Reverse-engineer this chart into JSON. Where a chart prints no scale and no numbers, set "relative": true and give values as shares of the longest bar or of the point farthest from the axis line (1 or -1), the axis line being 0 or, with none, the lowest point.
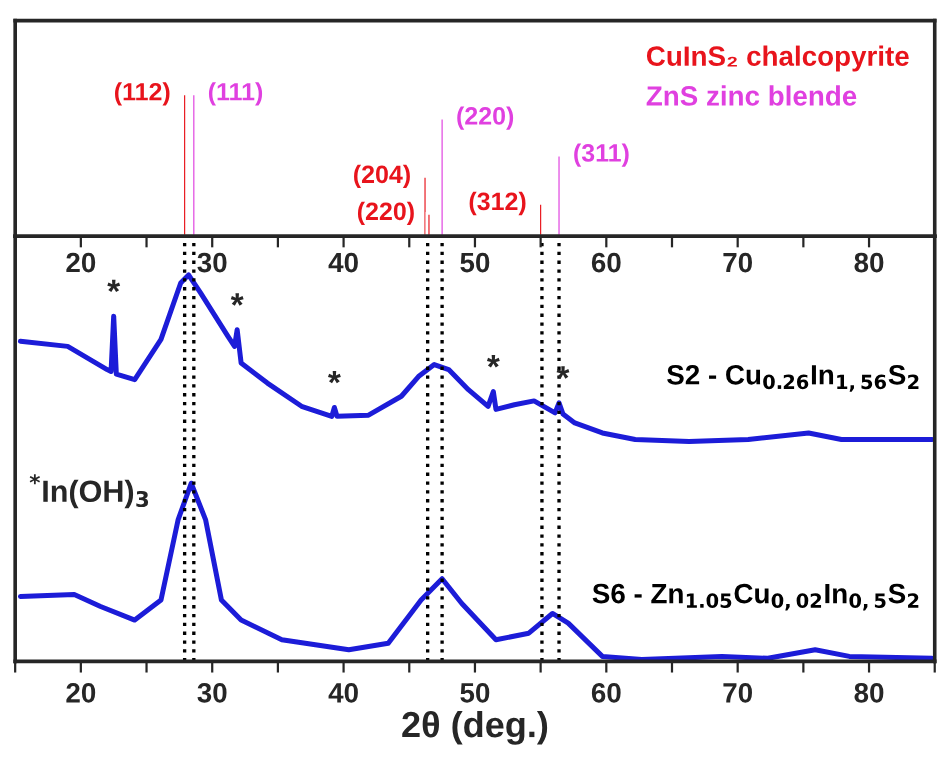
{
  "chart_data": [
    {
      "type": "bar",
      "relative": true,
      "legend": "top right",
      "tick_labels": false,
      "xlim": [
        15,
        85
      ],
      "xticks": [
        {
          "value": 15,
          "label": null
        },
        {
          "value": 20,
          "label": null
        },
        {
          "value": 25,
          "label": null
        },
        {
          "value": 30,
          "label": null
        },
        {
          "value": 35,
          "label": null
        },
        {
          "value": 40,
          "label": null
        },
        {
          "value": 45,
          "label": null
        },
        {
          "value": 50,
          "label": null
        },
        {
          "value": 55,
          "label": null
        },
        {
          "value": 60,
          "label": null
        },
        {
          "value": 65,
          "label": null
        },
        {
          "value": 70,
          "label": null
        },
        {
          "value": 75,
          "label": null
        },
        {
          "value": 80,
          "label": null
        },
        {
          "value": 85,
          "label": null
        }
      ],
      "series": [
        {
          "name": "CuInS₂ chalcopyrite",
          "color": "#e8141c",
          "x": [
            27.9,
            46.2,
            46.5,
            55.0
          ],
          "values": [
            1.0,
            0.42,
            0.16,
            0.23
          ]
        },
        {
          "name": "ZnS zinc blende",
          "color": "#e040e0",
          "x": [
            28.6,
            47.5,
            56.4
          ],
          "values": [
            1.0,
            0.83,
            0.57
          ]
        }
      ],
      "annotations": [
        {
          "text": "(112)",
          "x": 27.9,
          "y": 1.0
        },
        {
          "text": "(204)",
          "x": 46.2,
          "y": 0.42
        },
        {
          "text": "(220)",
          "x": 46.5,
          "y": 0.16
        },
        {
          "text": "(312)",
          "x": 55.0,
          "y": 0.23
        },
        {
          "text": "(111)",
          "x": 28.6,
          "y": 1.0
        },
        {
          "text": "(220)",
          "x": 47.5,
          "y": 0.83
        },
        {
          "text": "(311)",
          "x": 56.4,
          "y": 0.57
        }
      ]
    },
    {
      "type": "line",
      "relative": true,
      "xlabel": "2θ (deg.)",
      "tick_labels": "x",
      "xlim": [
        15,
        85
      ],
      "xticks": [
        {
          "value": 15,
          "label": null
        },
        20,
        {
          "value": 25,
          "label": null
        },
        30,
        {
          "value": 35,
          "label": null
        },
        40,
        {
          "value": 45,
          "label": null
        },
        50,
        {
          "value": 55,
          "label": null
        },
        60,
        {
          "value": 65,
          "label": null
        },
        70,
        {
          "value": 75,
          "label": null
        },
        80,
        {
          "value": 85,
          "label": null
        }
      ],
      "x2lim": [
        15,
        85
      ],
      "x2ticks": [
        {
          "value": 15,
          "label": null
        },
        20,
        {
          "value": 25,
          "label": null
        },
        30,
        {
          "value": 35,
          "label": null
        },
        40,
        {
          "value": 45,
          "label": null
        },
        50,
        {
          "value": 55,
          "label": null
        },
        60,
        {
          "value": 65,
          "label": null
        },
        70,
        {
          "value": 75,
          "label": null
        },
        80,
        {
          "value": 85,
          "label": null
        }
      ],
      "series": [
        {
          "name": "S2 - Cu$_{0.26}$In$_{1,56}$S$_{2}$",
          "color": "#1c1cd8",
          "x": [
            15.4,
            19.0,
            22.0,
            22.3,
            22.5,
            22.7,
            24.1,
            26.1,
            27.6,
            28.2,
            29.1,
            31.2,
            31.7,
            31.9,
            32.2,
            34.2,
            36.8,
            39.1,
            39.3,
            39.5,
            41.9,
            44.4,
            45.7,
            46.9,
            48.0,
            49.5,
            51.0,
            51.4,
            51.6,
            53.0,
            54.5,
            56.1,
            56.4,
            56.7,
            57.6,
            59.7,
            62.2,
            66.3,
            70.8,
            75.4,
            77.9,
            84.8
          ],
          "values": [
            0.828,
            0.815,
            0.755,
            0.75,
            0.893,
            0.743,
            0.729,
            0.833,
            0.979,
            1.0,
            0.954,
            0.841,
            0.815,
            0.858,
            0.772,
            0.72,
            0.66,
            0.634,
            0.657,
            0.634,
            0.637,
            0.686,
            0.737,
            0.768,
            0.755,
            0.703,
            0.66,
            0.698,
            0.652,
            0.664,
            0.674,
            0.643,
            0.669,
            0.64,
            0.617,
            0.591,
            0.574,
            0.569,
            0.574,
            0.591,
            0.574,
            0.574
          ]
        },
        {
          "name": "S6 - Zn$_{1.05}$Cu$_{0,02}$In$_{0,5}$S$_{2}$",
          "color": "#1c1cd8",
          "x": [
            15.4,
            19.5,
            21.5,
            24.1,
            26.1,
            27.4,
            28.4,
            29.5,
            30.7,
            32.2,
            35.3,
            40.4,
            43.4,
            45.9,
            47.5,
            49.0,
            51.6,
            54.1,
            55.9,
            57.1,
            59.7,
            62.7,
            68.8,
            72.3,
            75.9,
            78.5,
            84.8
          ],
          "values": [
            0.168,
            0.173,
            0.142,
            0.107,
            0.159,
            0.366,
            0.461,
            0.366,
            0.159,
            0.107,
            0.056,
            0.03,
            0.047,
            0.159,
            0.214,
            0.15,
            0.056,
            0.073,
            0.124,
            0.099,
            0.013,
            0.005,
            0.013,
            0.008,
            0.03,
            0.013,
            0.008
          ]
        }
      ],
      "ref_lines": [
        {
          "axis": "x",
          "value": 27.9,
          "color": "#000000",
          "line_style": "dotted"
        },
        {
          "axis": "x",
          "value": 28.6,
          "color": "#000000",
          "line_style": "dotted"
        },
        {
          "axis": "x",
          "value": 46.4,
          "color": "#000000",
          "line_style": "dotted"
        },
        {
          "axis": "x",
          "value": 47.5,
          "color": "#000000",
          "line_style": "dotted"
        },
        {
          "axis": "x",
          "value": 55.1,
          "color": "#000000",
          "line_style": "dotted"
        },
        {
          "axis": "x",
          "value": 56.4,
          "color": "#000000",
          "line_style": "dotted"
        }
      ],
      "annotations": [
        {
          "text": "*",
          "x": 22.5,
          "y": 0.893
        },
        {
          "text": "*",
          "x": 31.9,
          "y": 0.858
        },
        {
          "text": "*",
          "x": 39.3,
          "y": 0.657
        },
        {
          "text": "*",
          "x": 51.4,
          "y": 0.698
        },
        {
          "text": "*",
          "x": 56.7,
          "y": 0.669
        },
        "$^{*}$In(OH)$_{3}$"
      ]
    }
  ]
}
